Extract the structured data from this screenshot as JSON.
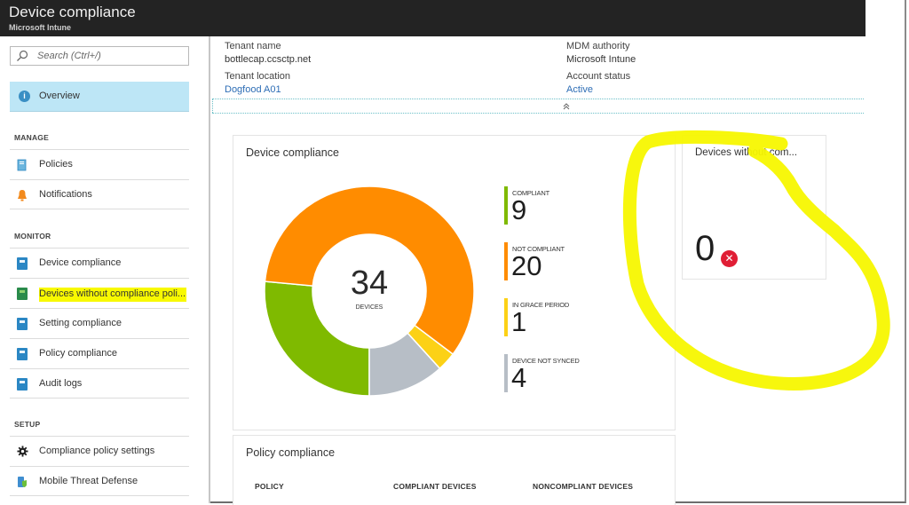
{
  "header": {
    "title": "Device compliance",
    "subtitle": "Microsoft Intune"
  },
  "sidebar": {
    "search_placeholder": "Search (Ctrl+/)",
    "overview_label": "Overview",
    "sections": {
      "manage": "MANAGE",
      "monitor": "MONITOR",
      "setup": "SETUP"
    },
    "manage_items": [
      {
        "label": "Policies",
        "icon": "policies-icon"
      },
      {
        "label": "Notifications",
        "icon": "bell-icon"
      }
    ],
    "monitor_items": [
      {
        "label": "Device compliance",
        "icon": "report-icon"
      },
      {
        "label": "Devices without compliance poli...",
        "icon": "report-icon",
        "highlighted": true
      },
      {
        "label": "Setting compliance",
        "icon": "report-icon"
      },
      {
        "label": "Policy compliance",
        "icon": "report-icon"
      },
      {
        "label": "Audit logs",
        "icon": "report-icon"
      }
    ],
    "setup_items": [
      {
        "label": "Compliance policy settings",
        "icon": "gear-icon"
      },
      {
        "label": "Mobile Threat Defense",
        "icon": "mobile-threat-icon"
      }
    ]
  },
  "essentials": {
    "tenant_name_label": "Tenant name",
    "tenant_name": "bottlecap.ccsctp.net",
    "tenant_location_label": "Tenant location",
    "tenant_location": "Dogfood A01",
    "mdm_authority_label": "MDM authority",
    "mdm_authority": "Microsoft Intune",
    "account_status_label": "Account status",
    "account_status": "Active",
    "collapse_glyph": "⌃"
  },
  "device_compliance_tile": {
    "title": "Device compliance",
    "total": "34",
    "total_label": "DEVICES",
    "legend": [
      {
        "label": "COMPLIANT",
        "value": "9",
        "color": "#7fba00"
      },
      {
        "label": "NOT COMPLIANT",
        "value": "20",
        "color": "#ff8c00"
      },
      {
        "label": "IN GRACE PERIOD",
        "value": "1",
        "color": "#fcd116"
      },
      {
        "label": "DEVICE NOT SYNCED",
        "value": "4",
        "color": "#b7bec6"
      }
    ]
  },
  "devices_without_tile": {
    "title": "Devices without com...",
    "value": "0",
    "status_icon": "error-icon"
  },
  "policy_compliance_tile": {
    "title": "Policy compliance",
    "columns": [
      "POLICY",
      "COMPLIANT DEVICES",
      "NONCOMPLIANT DEVICES"
    ]
  },
  "chart_data": {
    "type": "pie",
    "title": "Device compliance",
    "center_label": "34 DEVICES",
    "categories": [
      "Compliant",
      "Not compliant",
      "In grace period",
      "Device not synced"
    ],
    "values": [
      9,
      20,
      1,
      4
    ],
    "colors": [
      "#7fba00",
      "#ff8c00",
      "#fcd116",
      "#b7bec6"
    ],
    "donut": true,
    "legend_position": "right"
  },
  "annotation": {
    "color": "#f7f700",
    "description": "hand-drawn yellow loop around Devices without compliance tile"
  }
}
